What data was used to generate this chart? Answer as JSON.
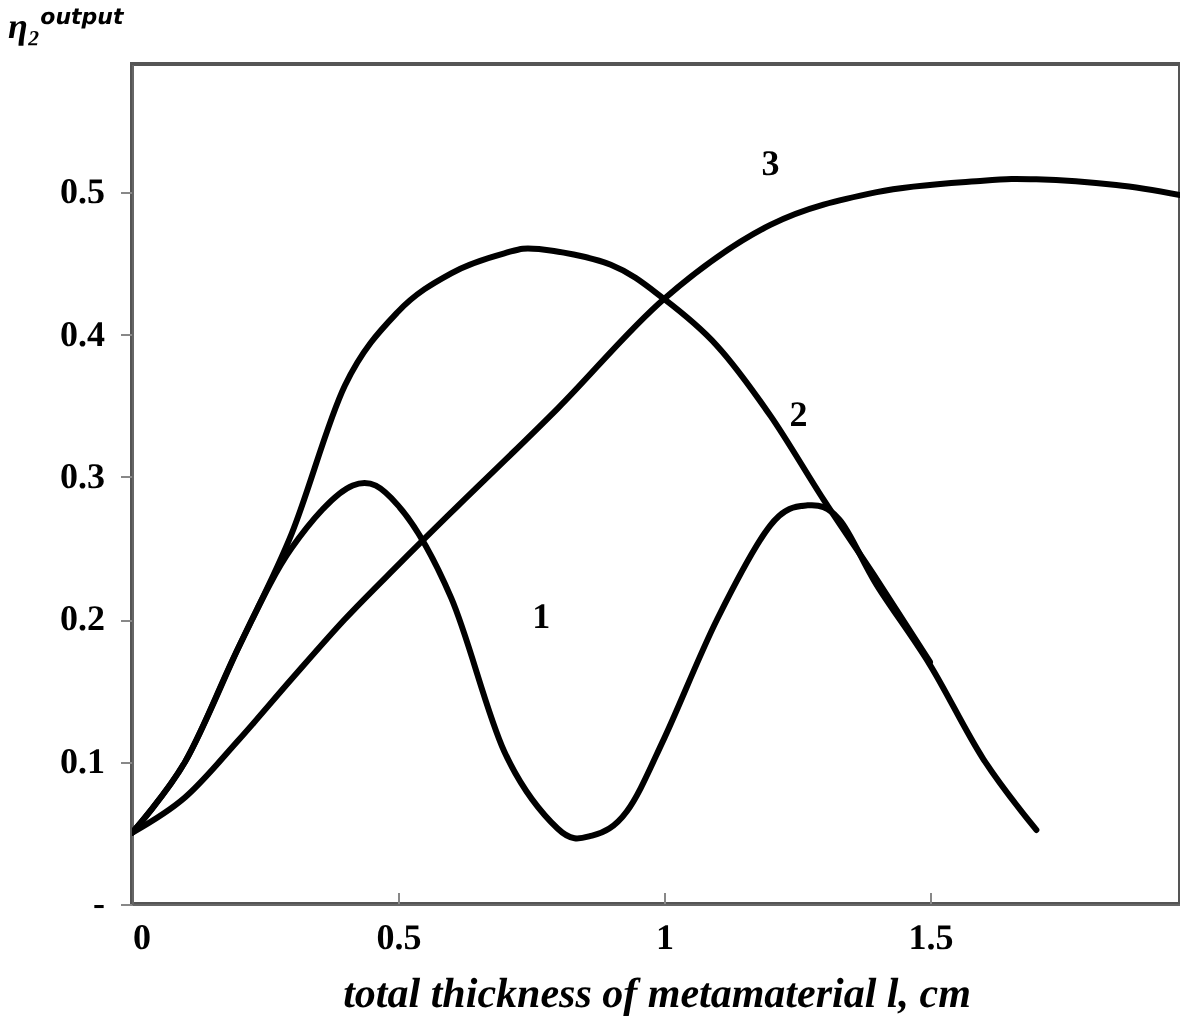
{
  "chart_data": {
    "type": "line",
    "xlabel": "total thickness of metamaterial  l, cm",
    "ylabel": "η₂$^{output}$",
    "xlim": [
      0,
      1.97
    ],
    "ylim": [
      0,
      0.59
    ],
    "xticks": [
      0,
      0.5,
      1,
      1.5
    ],
    "yticks": [
      {
        "value": 0,
        "label": "-"
      },
      0.1,
      0.2,
      0.3,
      0.4,
      0.5
    ],
    "grid": false,
    "line_style": "solid",
    "series": [
      {
        "name": "1",
        "color": "#000000",
        "x": [
          0,
          0.1,
          0.2,
          0.3,
          0.415,
          0.5,
          0.6,
          0.7,
          0.8,
          0.865,
          0.93,
          1.0,
          1.1,
          1.2,
          1.27,
          1.33,
          1.4,
          1.5,
          1.6,
          1.7
        ],
        "values": [
          0.05,
          0.1,
          0.18,
          0.25,
          0.294,
          0.28,
          0.215,
          0.107,
          0.053,
          0.048,
          0.065,
          0.116,
          0.2,
          0.266,
          0.28,
          0.27,
          0.224,
          0.168,
          0.102,
          0.052
        ]
      },
      {
        "name": "2",
        "color": "#000000",
        "x": [
          0,
          0.1,
          0.2,
          0.3,
          0.4,
          0.5,
          0.6,
          0.7,
          0.765,
          0.9,
          1.0,
          1.1,
          1.2,
          1.3,
          1.4,
          1.5
        ],
        "values": [
          0.05,
          0.1,
          0.18,
          0.26,
          0.364,
          0.416,
          0.443,
          0.457,
          0.46,
          0.449,
          0.425,
          0.392,
          0.343,
          0.284,
          0.228,
          0.17
        ]
      },
      {
        "name": "3",
        "color": "#000000",
        "x": [
          0,
          0.1,
          0.2,
          0.3,
          0.4,
          0.5,
          0.6,
          0.8,
          1.0,
          1.2,
          1.4,
          1.6,
          1.7,
          1.85,
          1.97
        ],
        "values": [
          0.05,
          0.075,
          0.115,
          0.158,
          0.2,
          0.238,
          0.275,
          0.348,
          0.425,
          0.477,
          0.5,
          0.508,
          0.509,
          0.505,
          0.498
        ]
      }
    ]
  }
}
